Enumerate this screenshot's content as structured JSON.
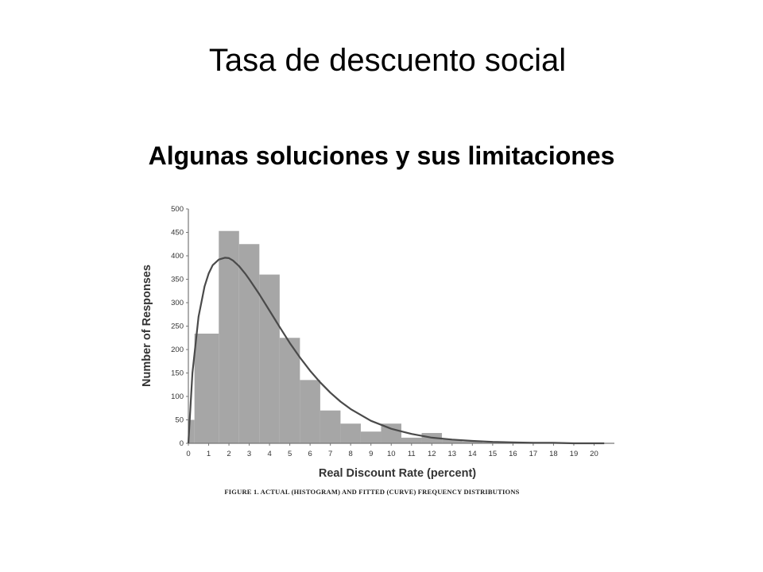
{
  "slide": {
    "title": "Tasa de descuento social",
    "subtitle": "Algunas soluciones y sus limitaciones"
  },
  "chart_data": {
    "type": "bar",
    "caption": "FIGURE 1. ACTUAL (HISTOGRAM) AND FITTED (CURVE) FREQUENCY DISTRIBUTIONS",
    "xlabel": "Real Discount Rate (percent)",
    "ylabel": "Number of Responses",
    "xlim": [
      0,
      21
    ],
    "ylim": [
      0,
      500
    ],
    "x_ticks": [
      0,
      1,
      2,
      3,
      4,
      5,
      6,
      7,
      8,
      9,
      10,
      11,
      12,
      13,
      14,
      15,
      16,
      17,
      18,
      19,
      20
    ],
    "y_ticks": [
      0,
      50,
      100,
      150,
      200,
      250,
      300,
      350,
      400,
      450,
      500
    ],
    "bars": [
      {
        "x0": 0,
        "x1": 0.3,
        "value": 50
      },
      {
        "x0": 0.3,
        "x1": 1.5,
        "value": 234
      },
      {
        "x0": 1.5,
        "x1": 2.5,
        "value": 453
      },
      {
        "x0": 2.5,
        "x1": 3.5,
        "value": 425
      },
      {
        "x0": 3.5,
        "x1": 4.5,
        "value": 360
      },
      {
        "x0": 4.5,
        "x1": 5.5,
        "value": 225
      },
      {
        "x0": 5.5,
        "x1": 6.5,
        "value": 135
      },
      {
        "x0": 6.5,
        "x1": 7.5,
        "value": 70
      },
      {
        "x0": 7.5,
        "x1": 8.5,
        "value": 42
      },
      {
        "x0": 8.5,
        "x1": 9.5,
        "value": 25
      },
      {
        "x0": 9.5,
        "x1": 10.5,
        "value": 42
      },
      {
        "x0": 10.5,
        "x1": 11.5,
        "value": 12
      },
      {
        "x0": 11.5,
        "x1": 12.5,
        "value": 22
      },
      {
        "x0": 12.5,
        "x1": 13.5,
        "value": 8
      },
      {
        "x0": 13.5,
        "x1": 14.5,
        "value": 4
      },
      {
        "x0": 14.5,
        "x1": 15.5,
        "value": 2
      },
      {
        "x0": 15.5,
        "x1": 16.5,
        "value": 1
      },
      {
        "x0": 16.5,
        "x1": 17.5,
        "value": 1
      },
      {
        "x0": 17.5,
        "x1": 18.5,
        "value": 0
      },
      {
        "x0": 18.5,
        "x1": 19.5,
        "value": 0
      },
      {
        "x0": 19.5,
        "x1": 20.5,
        "value": 0
      }
    ],
    "fitted_curve": {
      "x": [
        0,
        0.2,
        0.5,
        0.8,
        1.0,
        1.2,
        1.5,
        1.8,
        2.0,
        2.2,
        2.5,
        2.8,
        3.0,
        3.5,
        4.0,
        4.5,
        5.0,
        5.5,
        6.0,
        6.5,
        7.0,
        7.5,
        8.0,
        9.0,
        10.0,
        11.0,
        12.0,
        13.0,
        14.0,
        15.0,
        16.0,
        17.0,
        18.0,
        19.0,
        20.0,
        20.5
      ],
      "y": [
        0,
        150,
        270,
        335,
        362,
        380,
        392,
        396,
        395,
        390,
        378,
        362,
        350,
        318,
        283,
        248,
        214,
        183,
        155,
        130,
        108,
        89,
        73,
        48,
        31,
        20,
        12,
        8,
        5,
        3,
        2,
        1,
        1,
        0,
        0,
        0
      ]
    },
    "colors": {
      "bars": "#a6a6a6",
      "curve": "#4a4a4a",
      "axes": "#777777"
    }
  }
}
